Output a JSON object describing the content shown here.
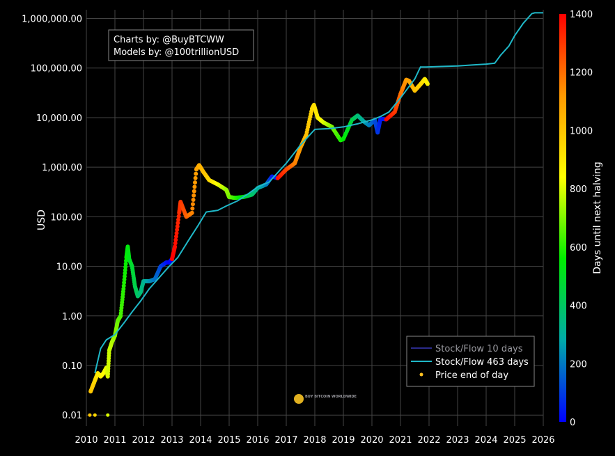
{
  "chart_data": {
    "type": "scatter",
    "title": "",
    "xlabel": "",
    "ylabel": "USD",
    "y_scale": "log",
    "ylim": [
      0.006,
      1500000
    ],
    "xlim": [
      "2010",
      "2026"
    ],
    "y_ticks": [
      "0.01",
      "0.10",
      "1.00",
      "10.00",
      "100.00",
      "1,000.00",
      "10,000.00",
      "100,000.00",
      "1,000,000.00"
    ],
    "x_ticks": [
      "2010",
      "2011",
      "2012",
      "2013",
      "2014",
      "2015",
      "2016",
      "2017",
      "2018",
      "2019",
      "2020",
      "2021",
      "2022",
      "2023",
      "2024",
      "2025",
      "2026"
    ],
    "grid": true,
    "annotation_lines": [
      "Charts by: @BuyBTCWW",
      "Models by: @100trillionUSD"
    ],
    "watermark": "BUY BITCOIN WORLDWIDE",
    "legend": {
      "placement": "bottom-right",
      "entries": [
        "Stock/Flow 10 days",
        "Stock/Flow 463 days",
        "Price end of day"
      ]
    },
    "colorbar": {
      "title": "Days until next halving",
      "range": [
        0,
        1400
      ],
      "ticks": [
        "0",
        "200",
        "400",
        "600",
        "800",
        "1000",
        "1200",
        "1400"
      ],
      "colorscale": [
        "#0000ff",
        "#00aaaa",
        "#00ee00",
        "#ffff00",
        "#ff9900",
        "#ff0000"
      ]
    },
    "series": [
      {
        "name": "Stock/Flow 463 days",
        "kind": "line",
        "color": "#1fb8c8",
        "x": [
          2010.3,
          2010.5,
          2010.7,
          2011.0,
          2011.3,
          2011.6,
          2011.9,
          2012.2,
          2012.5,
          2012.9,
          2013.2,
          2013.6,
          2013.9,
          2014.2,
          2014.6,
          2014.9,
          2015.3,
          2015.7,
          2016.0,
          2016.4,
          2016.5,
          2017.0,
          2017.5,
          2018.0,
          2018.5,
          2019.0,
          2019.5,
          2020.0,
          2020.3,
          2020.6,
          2021.0,
          2021.5,
          2021.7,
          2021.9,
          2022.5,
          2023.0,
          2023.5,
          2024.0,
          2024.3,
          2024.5,
          2024.8,
          2025.0,
          2025.3,
          2025.6,
          2025.7,
          2025.9,
          2026.0
        ],
        "y": [
          0.07,
          0.22,
          0.33,
          0.42,
          0.7,
          1.2,
          2.0,
          3.5,
          5.5,
          10.0,
          15,
          35,
          65,
          125,
          135,
          165,
          210,
          300,
          400,
          500,
          580,
          1200,
          2800,
          5800,
          6000,
          6500,
          7500,
          9000,
          10500,
          13000,
          25000,
          60000,
          105000,
          105000,
          108000,
          110000,
          115000,
          120000,
          125000,
          180000,
          280000,
          450000,
          800000,
          1250000,
          1300000,
          1300000,
          1300000
        ]
      },
      {
        "name": "Price end of day",
        "kind": "points",
        "color_by": "days_until_next_halving",
        "x": [
          2010.15,
          2010.3,
          2010.4,
          2010.5,
          2010.6,
          2010.7,
          2010.75,
          2010.8,
          2010.9,
          2011.0,
          2011.1,
          2011.2,
          2011.3,
          2011.4,
          2011.45,
          2011.5,
          2011.6,
          2011.7,
          2011.8,
          2011.9,
          2012.0,
          2012.2,
          2012.4,
          2012.6,
          2012.8,
          2012.9,
          2013.0,
          2013.1,
          2013.25,
          2013.3,
          2013.5,
          2013.7,
          2013.85,
          2013.95,
          2014.1,
          2014.3,
          2014.6,
          2014.9,
          2015.0,
          2015.2,
          2015.5,
          2015.8,
          2016.0,
          2016.3,
          2016.5,
          2016.7,
          2017.0,
          2017.3,
          2017.5,
          2017.7,
          2017.9,
          2017.97,
          2018.1,
          2018.3,
          2018.6,
          2018.9,
          2019.0,
          2019.3,
          2019.5,
          2019.7,
          2019.9,
          2020.1,
          2020.2,
          2020.3,
          2020.5,
          2020.8,
          2021.0,
          2021.2,
          2021.3,
          2021.5,
          2021.7,
          2021.85,
          2021.95
        ],
        "y": [
          0.03,
          0.05,
          0.07,
          0.06,
          0.07,
          0.09,
          0.06,
          0.2,
          0.3,
          0.4,
          0.8,
          1.0,
          3.5,
          15,
          25,
          14,
          10,
          4,
          2.5,
          3.0,
          5.0,
          5.0,
          5.5,
          10,
          12,
          12,
          14,
          25,
          120,
          200,
          100,
          120,
          900,
          1100,
          800,
          550,
          450,
          350,
          250,
          240,
          250,
          280,
          380,
          450,
          650,
          600,
          900,
          1200,
          2500,
          4500,
          15000,
          18000,
          10000,
          8000,
          6500,
          3500,
          3700,
          9000,
          11000,
          8500,
          7000,
          9000,
          5000,
          9500,
          9200,
          13000,
          30000,
          58000,
          55000,
          35000,
          47000,
          60000,
          48000
        ],
        "days_until_next_halving": [
          1000,
          950,
          900,
          880,
          850,
          820,
          800,
          780,
          760,
          720,
          680,
          640,
          600,
          560,
          540,
          520,
          480,
          440,
          400,
          360,
          330,
          260,
          190,
          120,
          40,
          10,
          1400,
          1380,
          1320,
          1300,
          1230,
          1160,
          1100,
          1070,
          1020,
          950,
          840,
          730,
          700,
          620,
          510,
          400,
          320,
          220,
          50,
          1380,
          1280,
          1170,
          1100,
          1020,
          950,
          930,
          890,
          810,
          700,
          600,
          560,
          450,
          370,
          300,
          220,
          130,
          90,
          40,
          1400,
          1300,
          1200,
          1120,
          1100,
          1020,
          960,
          900,
          870
        ]
      }
    ],
    "scatter_extras": {
      "x": [
        2010.12,
        2010.3,
        2010.75
      ],
      "y": [
        0.01,
        0.01,
        0.01
      ],
      "days_until_next_halving": [
        1000,
        950,
        800
      ]
    }
  }
}
